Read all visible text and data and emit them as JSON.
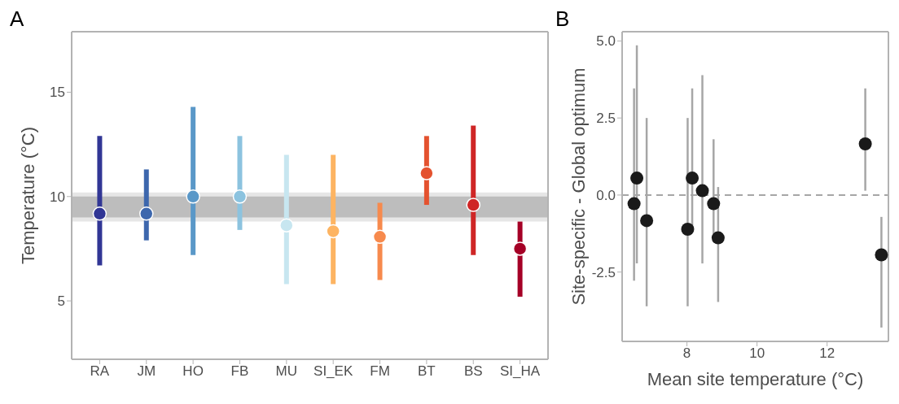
{
  "chart_data": [
    {
      "type": "scatter",
      "title": "A",
      "ylabel": "Temperature (°C)",
      "categories": [
        "RA",
        "JM",
        "HO",
        "FB",
        "MU",
        "SI_EK",
        "FM",
        "BT",
        "BS",
        "SI_HA"
      ],
      "values": [
        9.18,
        9.18,
        10.0,
        10.0,
        8.62,
        8.34,
        8.07,
        11.12,
        9.6,
        7.5
      ],
      "colors": [
        "#313695",
        "#3d67ad",
        "#5a98c8",
        "#8cc3df",
        "#c7e6f0",
        "#fdb462",
        "#f78a4d",
        "#e4522f",
        "#cf2626",
        "#a50026"
      ],
      "errors": [
        [
          6.7,
          12.9
        ],
        [
          7.9,
          11.3
        ],
        [
          7.2,
          14.3
        ],
        [
          8.4,
          12.9
        ],
        [
          5.8,
          12.0
        ],
        [
          5.8,
          12.0
        ],
        [
          6.0,
          9.7
        ],
        [
          9.6,
          12.9
        ],
        [
          7.2,
          13.4
        ],
        [
          5.2,
          8.8
        ]
      ],
      "bands": [
        {
          "axis": "y",
          "from": 8.8,
          "to": 10.2,
          "color": "#e6e6e6"
        },
        {
          "axis": "y",
          "from": 9.0,
          "to": 10.0,
          "color": "#bdbdbd"
        }
      ],
      "ylim": [
        2.2,
        17.9
      ],
      "yticks": [
        5,
        10,
        15
      ],
      "marker": "circle"
    },
    {
      "type": "scatter",
      "title": "B",
      "xlabel": "Mean site temperature (°C)",
      "ylabel": "Site-specific - Global optimum",
      "x": [
        6.49,
        6.57,
        6.85,
        8.02,
        8.15,
        8.44,
        8.76,
        8.89,
        13.09,
        13.55
      ],
      "values": [
        -0.28,
        0.55,
        -0.83,
        -1.11,
        0.55,
        0.14,
        -0.28,
        -1.39,
        1.66,
        -1.94
      ],
      "errors": [
        [
          -2.78,
          3.46
        ],
        [
          -2.22,
          4.86
        ],
        [
          -3.61,
          2.5
        ],
        [
          -3.61,
          2.5
        ],
        [
          -1.12,
          3.46
        ],
        [
          -2.22,
          3.89
        ],
        [
          -1.53,
          1.81
        ],
        [
          -3.47,
          0.26
        ],
        [
          0.14,
          3.46
        ],
        [
          -4.3,
          -0.71
        ]
      ],
      "color": "#1a1a1a",
      "ref_lines": [
        {
          "axis": "y",
          "value": 0,
          "color": "#a6a6a6",
          "line_style": "dashed"
        }
      ],
      "xlim": [
        6.15,
        13.75
      ],
      "xticks": [
        8,
        10,
        12
      ],
      "ylim": [
        -4.75,
        5.3
      ],
      "yticks": [
        {
          "value": -2.5,
          "label": "-2.5"
        },
        {
          "value": 0,
          "label": "0.0"
        },
        {
          "value": 2.5,
          "label": "2.5"
        },
        {
          "value": 5,
          "label": "5.0"
        }
      ],
      "marker": "circle"
    }
  ]
}
